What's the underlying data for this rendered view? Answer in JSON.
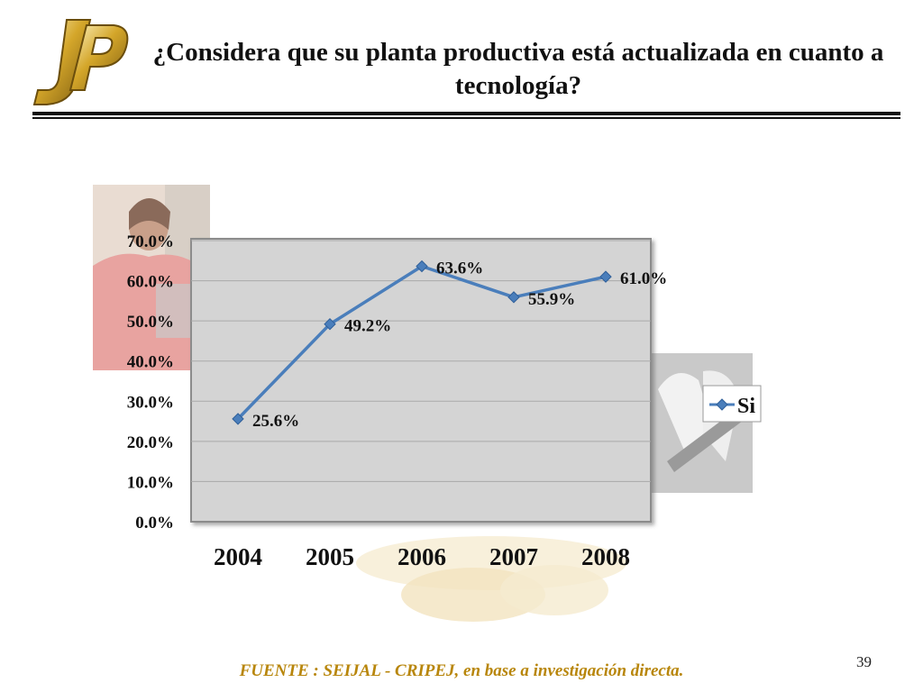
{
  "slide": {
    "title": "¿Considera que su planta productiva está actualizada en cuanto a tecnología?",
    "footer": "FUENTE :  SEIJAL - CRIPEJ,  en base a investigación directa.",
    "page_number": "39"
  },
  "colors": {
    "line": "#4a7ebb",
    "plot_bg": "#d4d4d4",
    "footer": "#b8860b"
  },
  "chart_data": {
    "type": "line",
    "title": "",
    "xlabel": "",
    "ylabel": "",
    "categories": [
      "2004",
      "2005",
      "2006",
      "2007",
      "2008"
    ],
    "series": [
      {
        "name": "Si",
        "values": [
          25.6,
          49.2,
          63.6,
          55.9,
          61.0
        ],
        "labels": [
          "25.6%",
          "49.2%",
          "63.6%",
          "55.9%",
          "61.0%"
        ]
      }
    ],
    "yticks": [
      "0.0%",
      "10.0%",
      "20.0%",
      "30.0%",
      "40.0%",
      "50.0%",
      "60.0%",
      "70.0%"
    ],
    "ylim": [
      0,
      70
    ],
    "legend": "right"
  }
}
